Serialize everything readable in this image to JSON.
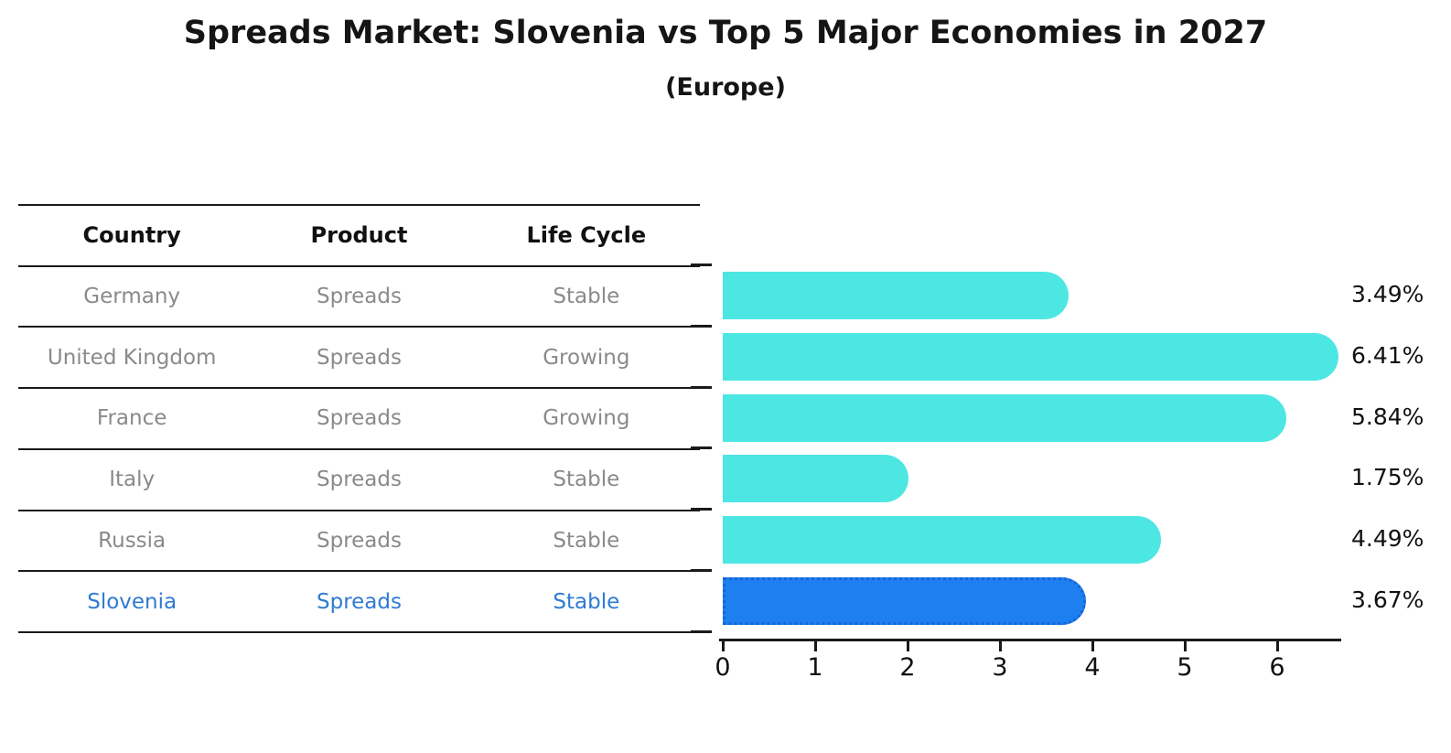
{
  "title": "Spreads Market: Slovenia vs Top 5 Major Economies in 2027",
  "subtitle": "(Europe)",
  "table": {
    "headers": [
      "Country",
      "Product",
      "Life Cycle"
    ],
    "rows": [
      {
        "country": "Germany",
        "product": "Spreads",
        "life_cycle": "Stable",
        "highlighted": false
      },
      {
        "country": "United Kingdom",
        "product": "Spreads",
        "life_cycle": "Growing",
        "highlighted": false
      },
      {
        "country": "France",
        "product": "Spreads",
        "life_cycle": "Growing",
        "highlighted": false
      },
      {
        "country": "Italy",
        "product": "Spreads",
        "life_cycle": "Stable",
        "highlighted": false
      },
      {
        "country": "Russia",
        "product": "Spreads",
        "life_cycle": "Stable",
        "highlighted": true,
        "country_override": null
      },
      {
        "country": "Slovenia",
        "product": "Spreads",
        "life_cycle": "Stable",
        "highlighted": true
      }
    ]
  },
  "chart_data": {
    "type": "bar",
    "orientation": "horizontal",
    "categories": [
      "Germany",
      "United Kingdom",
      "France",
      "Italy",
      "Russia",
      "Slovenia"
    ],
    "values": [
      3.49,
      6.41,
      5.84,
      1.75,
      4.49,
      3.67
    ],
    "value_labels": [
      "3.49%",
      "6.41%",
      "5.84%",
      "1.75%",
      "4.49%",
      "3.67%"
    ],
    "highlight_index": 5,
    "x_ticks": [
      "0",
      "1",
      "2",
      "3",
      "4",
      "5",
      "6"
    ],
    "xlim": [
      0,
      6.65
    ],
    "grid": false,
    "legend": "none",
    "bar_color": "#4de7e3",
    "highlight_bar_color": "#1e80f0",
    "highlight_border_color": "#1565d8",
    "highlight_text_color": "#2e7bd2",
    "row_text_color": "#8a8a8a"
  }
}
